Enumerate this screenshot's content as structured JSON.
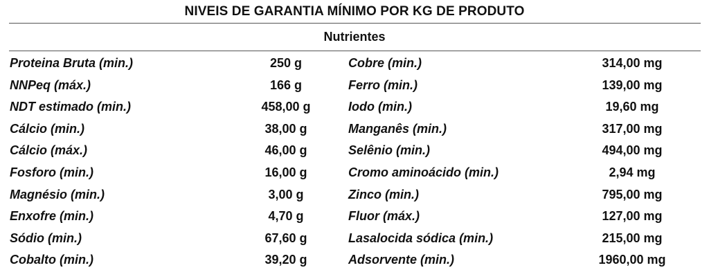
{
  "title": "NIVEIS DE GARANTIA MÍNIMO POR KG DE PRODUTO",
  "subtitle": "Nutrientes",
  "rows": [
    {
      "n1": "Proteina Bruta (min.)",
      "v1": "250 g",
      "n2": "Cobre (min.)",
      "v2": "314,00 mg"
    },
    {
      "n1": "NNPeq (máx.)",
      "v1": "166 g",
      "n2": "Ferro (min.)",
      "v2": "139,00 mg"
    },
    {
      "n1": "NDT estimado (min.)",
      "v1": "458,00 g",
      "n2": "Iodo (min.)",
      "v2": "19,60 mg"
    },
    {
      "n1": "Cálcio (min.)",
      "v1": "38,00 g",
      "n2": "Manganês (min.)",
      "v2": "317,00 mg"
    },
    {
      "n1": "Cálcio (máx.)",
      "v1": "46,00 g",
      "n2": "Selênio (min.)",
      "v2": "494,00 mg"
    },
    {
      "n1": "Fosforo (min.)",
      "v1": "16,00 g",
      "n2": "Cromo aminoácido (min.)",
      "v2": "2,94 mg"
    },
    {
      "n1": "Magnésio (min.)",
      "v1": "3,00 g",
      "n2": "Zinco (min.)",
      "v2": "795,00 mg"
    },
    {
      "n1": "Enxofre (min.)",
      "v1": "4,70 g",
      "n2": "Fluor (máx.)",
      "v2": "127,00 mg"
    },
    {
      "n1": "Sódio (min.)",
      "v1": "67,60 g",
      "n2": "Lasalocida sódica (min.)",
      "v2": "215,00 mg"
    },
    {
      "n1": "Cobalto (min.)",
      "v1": "39,20 g",
      "n2": "Adsorvente (min.)",
      "v2": "1960,00 mg"
    }
  ]
}
